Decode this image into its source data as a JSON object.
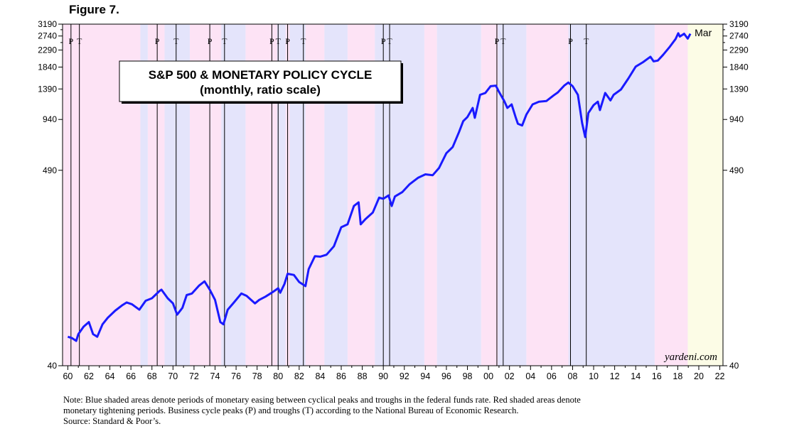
{
  "figure_label": "Figure 7.",
  "chart_data": {
    "type": "line",
    "title": "S&P 500 & MONETARY POLICY CYCLE",
    "subtitle": "(monthly, ratio scale)",
    "scale": "log",
    "ylim": [
      40,
      3190
    ],
    "xlim": [
      1959.5,
      2022.3
    ],
    "y_ticks": [
      40,
      490,
      940,
      1390,
      1840,
      2290,
      2740,
      3190
    ],
    "y_tick_labels": [
      "40",
      "490",
      "940",
      "1390",
      "1840",
      "2290",
      "2740",
      "3190"
    ],
    "x_ticks": [
      1960,
      1962,
      1964,
      1966,
      1968,
      1970,
      1972,
      1974,
      1976,
      1978,
      1980,
      1982,
      1984,
      1986,
      1988,
      1990,
      1992,
      1994,
      1996,
      1998,
      2000,
      2002,
      2004,
      2006,
      2008,
      2010,
      2012,
      2014,
      2016,
      2018,
      2020,
      2022
    ],
    "x_tick_labels": [
      "60",
      "62",
      "64",
      "66",
      "68",
      "70",
      "72",
      "74",
      "76",
      "78",
      "80",
      "82",
      "84",
      "86",
      "88",
      "90",
      "92",
      "94",
      "96",
      "98",
      "00",
      "02",
      "04",
      "06",
      "08",
      "10",
      "12",
      "14",
      "16",
      "18",
      "20",
      "22"
    ],
    "series": [
      {
        "name": "S&P 500",
        "color": "#1a1aff",
        "x": [
          1960.0,
          1960.4,
          1960.8,
          1961.0,
          1961.5,
          1962.0,
          1962.4,
          1962.8,
          1963.3,
          1963.8,
          1964.5,
          1965.2,
          1965.6,
          1966.1,
          1966.8,
          1967.4,
          1968.0,
          1968.7,
          1968.9,
          1969.5,
          1970.0,
          1970.4,
          1970.9,
          1971.3,
          1971.8,
          1972.5,
          1973.0,
          1973.5,
          1974.0,
          1974.5,
          1974.8,
          1975.2,
          1975.8,
          1976.5,
          1977.0,
          1977.8,
          1978.2,
          1978.8,
          1979.5,
          1980.0,
          1980.2,
          1980.6,
          1980.9,
          1981.5,
          1982.0,
          1982.6,
          1982.9,
          1983.5,
          1984.0,
          1984.6,
          1985.3,
          1986.0,
          1986.6,
          1987.2,
          1987.65,
          1987.85,
          1988.3,
          1989.0,
          1989.6,
          1990.0,
          1990.5,
          1990.8,
          1991.1,
          1991.8,
          1992.5,
          1993.3,
          1994.0,
          1994.7,
          1995.3,
          1996.0,
          1996.6,
          1997.2,
          1997.6,
          1998.0,
          1998.5,
          1998.7,
          1999.2,
          1999.7,
          2000.2,
          2000.7,
          2001.0,
          2001.5,
          2001.8,
          2002.2,
          2002.6,
          2002.8,
          2003.2,
          2003.6,
          2004.2,
          2004.8,
          2005.5,
          2006.2,
          2006.6,
          2007.2,
          2007.6,
          2008.0,
          2008.5,
          2008.9,
          2009.2,
          2009.5,
          2010.0,
          2010.4,
          2010.6,
          2011.1,
          2011.6,
          2011.9,
          2012.6,
          2013.3,
          2014.0,
          2014.7,
          2015.4,
          2015.7,
          2016.1,
          2016.6,
          2017.2,
          2017.8,
          2018.05,
          2018.2,
          2018.6,
          2018.95,
          2019.2
        ],
        "values": [
          58,
          57,
          55,
          60,
          66,
          70,
          60,
          58,
          68,
          74,
          81,
          87,
          90,
          88,
          82,
          92,
          95,
          104,
          106,
          95,
          89,
          77,
          84,
          99,
          101,
          112,
          118,
          106,
          93,
          70,
          68,
          82,
          90,
          101,
          98,
          89,
          93,
          97,
          103,
          108,
          102,
          114,
          130,
          128,
          117,
          111,
          138,
          163,
          162,
          166,
          185,
          236,
          245,
          310,
          325,
          245,
          262,
          285,
          345,
          340,
          355,
          310,
          350,
          370,
          410,
          445,
          465,
          460,
          505,
          610,
          660,
          800,
          920,
          970,
          1090,
          960,
          1290,
          1320,
          1440,
          1450,
          1340,
          1190,
          1090,
          1140,
          960,
          890,
          870,
          1000,
          1140,
          1180,
          1190,
          1280,
          1330,
          1450,
          1510,
          1440,
          1290,
          900,
          750,
          1020,
          1130,
          1180,
          1060,
          1320,
          1200,
          1290,
          1380,
          1590,
          1850,
          1960,
          2100,
          1980,
          2000,
          2150,
          2370,
          2640,
          2840,
          2720,
          2820,
          2650,
          2820
        ]
      }
    ],
    "easing_periods": [
      [
        1966.9,
        1967.6
      ],
      [
        1969.2,
        1971.6
      ],
      [
        1974.6,
        1976.9
      ],
      [
        1979.9,
        1980.7
      ],
      [
        1981.1,
        1982.6
      ],
      [
        1984.4,
        1986.6
      ],
      [
        1989.2,
        1993.9
      ],
      [
        1995.1,
        1999.3
      ],
      [
        2000.9,
        2003.6
      ],
      [
        2007.6,
        2015.8
      ]
    ],
    "tightening_periods": [
      [
        1959.5,
        1966.9
      ],
      [
        1967.6,
        1969.2
      ],
      [
        1971.6,
        1974.6
      ],
      [
        1976.9,
        1979.9
      ],
      [
        1980.7,
        1981.1
      ],
      [
        1982.6,
        1984.4
      ],
      [
        1986.6,
        1989.2
      ],
      [
        1993.9,
        1995.1
      ],
      [
        1999.3,
        2000.9
      ],
      [
        2003.6,
        2007.6
      ],
      [
        2015.8,
        2018.95
      ]
    ],
    "future_period": [
      2018.95,
      2022.3
    ],
    "business_cycle": [
      {
        "label": "P",
        "x": 1960.3
      },
      {
        "label": "T",
        "x": 1961.1
      },
      {
        "label": "P",
        "x": 1968.5
      },
      {
        "label": "T",
        "x": 1970.3
      },
      {
        "label": "P",
        "x": 1973.5
      },
      {
        "label": "T",
        "x": 1974.9
      },
      {
        "label": "P",
        "x": 1979.4
      },
      {
        "label": "T",
        "x": 1980.0
      },
      {
        "label": "P",
        "x": 1980.9
      },
      {
        "label": "T",
        "x": 1982.4
      },
      {
        "label": "P",
        "x": 1990.0
      },
      {
        "label": "T",
        "x": 1990.6
      },
      {
        "label": "P",
        "x": 2000.8
      },
      {
        "label": "T",
        "x": 2001.4
      },
      {
        "label": "P",
        "x": 2007.8
      },
      {
        "label": "T",
        "x": 2009.3
      }
    ],
    "end_label": "Mar",
    "watermark": "yardeni.com"
  },
  "note": {
    "line1": "Note: Blue shaded areas denote periods of monetary easing between cyclical peaks and troughs in the federal funds rate. Red shaded areas denote",
    "line2": "monetary tightening periods. Business cycle peaks (P) and troughs (T) according to the National Bureau of Economic Research.",
    "source": "Source: Standard & Poor’s."
  },
  "colors": {
    "easing": "#e4e4fb",
    "tightening": "#fde3f5",
    "future": "#fcfce6",
    "line": "#1a1aff",
    "axis": "#000000"
  }
}
